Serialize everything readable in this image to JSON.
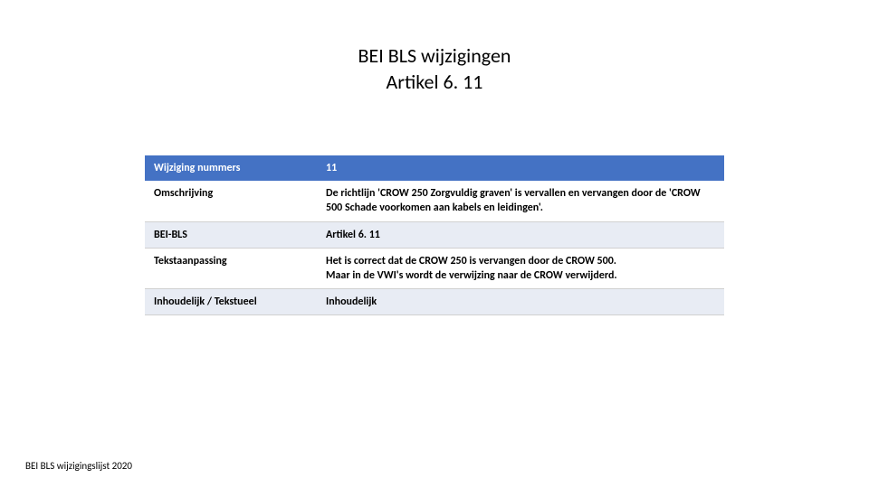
{
  "title": {
    "line1": "BEI BLS wijzigingen",
    "line2": "Artikel 6. 11"
  },
  "table": {
    "header_color": "#4472c4",
    "shade_color": "#e8ecf4",
    "border_color": "#d0d0d0",
    "label_col_width": 190,
    "font_size": 12,
    "rows": [
      {
        "label": "Wijziging nummers",
        "value": "11",
        "style": "header"
      },
      {
        "label": "Omschrijving",
        "value": "De richtlijn 'CROW 250 Zorgvuldig graven' is vervallen en vervangen door de 'CROW 500 Schade voorkomen aan kabels en leidingen'.",
        "style": "white"
      },
      {
        "label": "BEI-BLS",
        "value": "Artikel 6. 11",
        "style": "shade"
      },
      {
        "label": "Tekstaanpassing",
        "value": "Het is correct dat de CROW 250 is vervangen door de CROW 500.\nMaar in de VWI's wordt de verwijzing naar de CROW verwijderd.",
        "style": "white"
      },
      {
        "label": "Inhoudelijk / Tekstueel",
        "value": "Inhoudelijk",
        "style": "shade"
      }
    ]
  },
  "footer": "BEI BLS wijzigingslijst 2020"
}
